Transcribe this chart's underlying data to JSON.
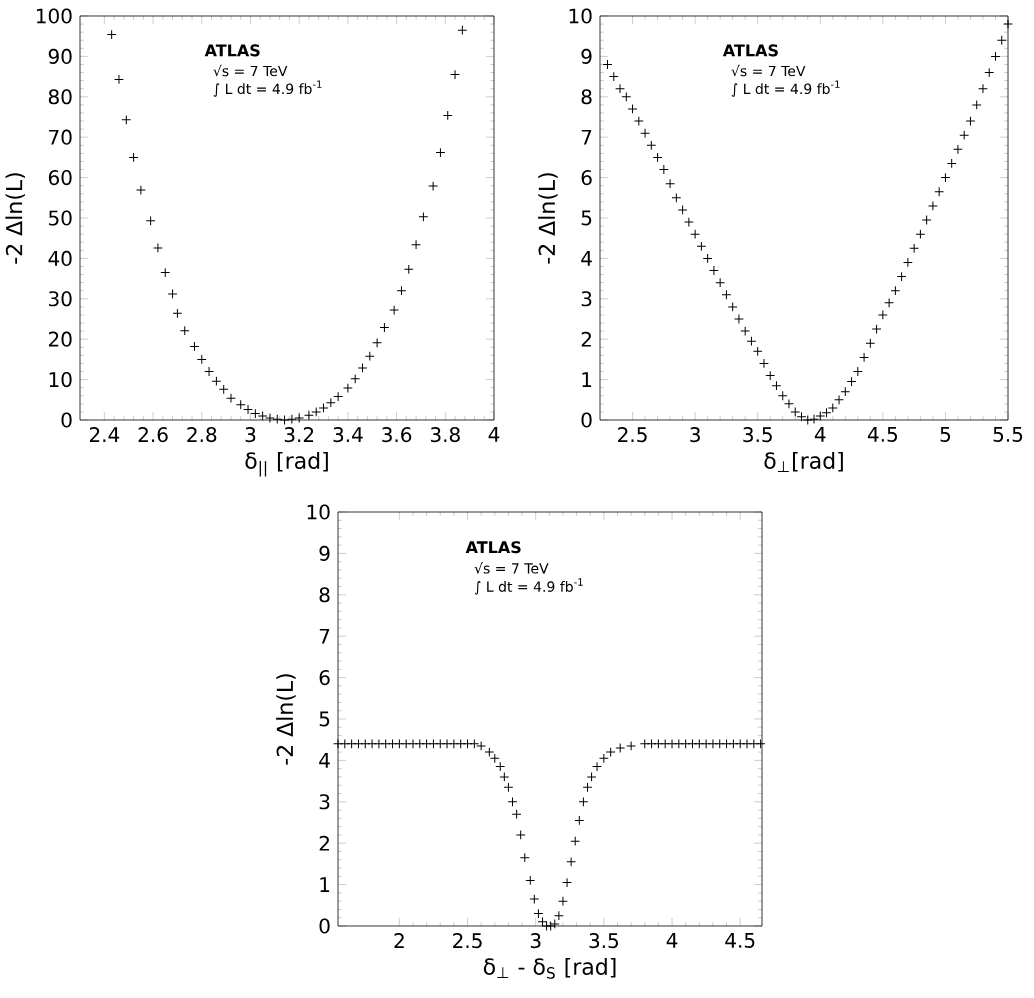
{
  "chart_data": [
    {
      "type": "scatter",
      "marker": "cross",
      "color": "#000000",
      "xlabel": "δ$_{||}$ [rad]",
      "ylabel": "-2 Δln(L)",
      "xlim": [
        2.3,
        4
      ],
      "ylim": [
        0,
        100
      ],
      "xticks": [
        2.4,
        2.6,
        2.8,
        3,
        3.2,
        3.4,
        3.6,
        3.8,
        4
      ],
      "yticks": [
        0,
        10,
        20,
        30,
        40,
        50,
        60,
        70,
        80,
        90,
        100
      ],
      "annotations": [
        "ATLAS",
        "√s = 7 TeV",
        "∫ L dt = 4.9 fb$^{-1}$"
      ],
      "x": [
        2.43,
        2.46,
        2.49,
        2.52,
        2.55,
        2.59,
        2.62,
        2.65,
        2.68,
        2.7,
        2.73,
        2.77,
        2.8,
        2.83,
        2.86,
        2.89,
        2.92,
        2.96,
        2.99,
        3.02,
        3.05,
        3.08,
        3.11,
        3.14,
        3.17,
        3.2,
        3.24,
        3.27,
        3.3,
        3.33,
        3.36,
        3.4,
        3.43,
        3.46,
        3.49,
        3.52,
        3.55,
        3.59,
        3.62,
        3.65,
        3.68,
        3.71,
        3.75,
        3.78,
        3.81,
        3.84,
        3.87
      ],
      "values": [
        95.4,
        84.3,
        74.3,
        65,
        56.9,
        49.3,
        42.6,
        36.5,
        31.2,
        26.4,
        22.1,
        18.2,
        15,
        12,
        9.6,
        7.6,
        5.4,
        3.8,
        2.6,
        1.6,
        1,
        0.5,
        0.2,
        0,
        0.2,
        0.5,
        1.2,
        2,
        3,
        4.3,
        5.8,
        7.9,
        10.2,
        12.9,
        15.8,
        19.1,
        22.9,
        27.2,
        32,
        37.3,
        43.4,
        50.3,
        57.9,
        66.2,
        75.4,
        85.5,
        96.5
      ]
    },
    {
      "type": "scatter",
      "marker": "cross",
      "color": "#000000",
      "xlabel": "δ$_{⊥}$[rad]",
      "ylabel": "-2 Δln(L)",
      "xlim": [
        2.24,
        5.5
      ],
      "ylim": [
        0,
        10
      ],
      "xticks": [
        2.5,
        3,
        3.5,
        4,
        4.5,
        5,
        5.5
      ],
      "yticks": [
        0,
        1,
        2,
        3,
        4,
        5,
        6,
        7,
        8,
        9,
        10
      ],
      "annotations": [
        "ATLAS",
        "√s = 7 TeV",
        "∫ L dt = 4.9 fb$^{-1}$"
      ],
      "x": [
        2.3,
        2.35,
        2.4,
        2.45,
        2.5,
        2.55,
        2.6,
        2.65,
        2.7,
        2.75,
        2.8,
        2.85,
        2.9,
        2.95,
        3.0,
        3.05,
        3.1,
        3.15,
        3.2,
        3.25,
        3.3,
        3.35,
        3.4,
        3.45,
        3.5,
        3.55,
        3.6,
        3.65,
        3.7,
        3.75,
        3.8,
        3.85,
        3.9,
        3.95,
        4.0,
        4.05,
        4.1,
        4.15,
        4.2,
        4.25,
        4.3,
        4.35,
        4.4,
        4.45,
        4.5,
        4.55,
        4.6,
        4.65,
        4.7,
        4.75,
        4.8,
        4.85,
        4.9,
        4.95,
        5.0,
        5.05,
        5.1,
        5.15,
        5.2,
        5.25,
        5.3,
        5.35,
        5.4,
        5.45,
        5.5
      ],
      "values": [
        8.8,
        8.5,
        8.2,
        8.0,
        7.7,
        7.4,
        7.1,
        6.8,
        6.5,
        6.2,
        5.85,
        5.5,
        5.2,
        4.9,
        4.6,
        4.3,
        4.0,
        3.7,
        3.4,
        3.1,
        2.8,
        2.5,
        2.2,
        1.95,
        1.7,
        1.4,
        1.1,
        0.85,
        0.6,
        0.4,
        0.2,
        0.08,
        0,
        0.02,
        0.1,
        0.18,
        0.3,
        0.5,
        0.7,
        0.95,
        1.2,
        1.55,
        1.9,
        2.25,
        2.6,
        2.9,
        3.2,
        3.55,
        3.9,
        4.25,
        4.6,
        4.95,
        5.3,
        5.65,
        6.0,
        6.35,
        6.7,
        7.05,
        7.4,
        7.8,
        8.2,
        8.6,
        9.0,
        9.4,
        9.8
      ]
    },
    {
      "type": "scatter",
      "marker": "cross",
      "color": "#000000",
      "xlabel": "δ$_{⊥}$ - δ$_{S}$ [rad]",
      "ylabel": "-2 Δln(L)",
      "xlim": [
        1.55,
        4.66
      ],
      "ylim": [
        0,
        10
      ],
      "xticks": [
        2,
        2.5,
        3,
        3.5,
        4,
        4.5
      ],
      "yticks": [
        0,
        1,
        2,
        3,
        4,
        5,
        6,
        7,
        8,
        9,
        10
      ],
      "annotations": [
        "ATLAS",
        "√s = 7 TeV",
        "∫ L dt = 4.9 fb$^{-1}$"
      ],
      "x": [
        1.55,
        1.6,
        1.65,
        1.7,
        1.75,
        1.8,
        1.85,
        1.9,
        1.95,
        2.0,
        2.05,
        2.1,
        2.15,
        2.2,
        2.25,
        2.3,
        2.35,
        2.4,
        2.45,
        2.5,
        2.55,
        2.6,
        2.66,
        2.7,
        2.74,
        2.77,
        2.8,
        2.83,
        2.86,
        2.89,
        2.92,
        2.96,
        2.99,
        3.02,
        3.05,
        3.08,
        3.11,
        3.14,
        3.17,
        3.2,
        3.23,
        3.26,
        3.29,
        3.32,
        3.35,
        3.38,
        3.41,
        3.45,
        3.5,
        3.55,
        3.62,
        3.7,
        3.8,
        3.85,
        3.9,
        3.95,
        4.0,
        4.05,
        4.1,
        4.15,
        4.2,
        4.25,
        4.3,
        4.35,
        4.4,
        4.45,
        4.5,
        4.55,
        4.6,
        4.65
      ],
      "values": [
        4.4,
        4.4,
        4.4,
        4.4,
        4.4,
        4.4,
        4.4,
        4.4,
        4.4,
        4.4,
        4.4,
        4.4,
        4.4,
        4.4,
        4.4,
        4.4,
        4.4,
        4.4,
        4.4,
        4.4,
        4.4,
        4.35,
        4.2,
        4.05,
        3.85,
        3.6,
        3.35,
        3.0,
        2.7,
        2.2,
        1.65,
        1.1,
        0.65,
        0.3,
        0.1,
        0,
        0,
        0.05,
        0.25,
        0.6,
        1.05,
        1.55,
        2.05,
        2.55,
        3.0,
        3.35,
        3.6,
        3.85,
        4.05,
        4.2,
        4.3,
        4.35,
        4.4,
        4.4,
        4.4,
        4.4,
        4.4,
        4.4,
        4.4,
        4.4,
        4.4,
        4.4,
        4.4,
        4.4,
        4.4,
        4.4,
        4.4,
        4.4,
        4.4,
        4.4
      ]
    }
  ]
}
